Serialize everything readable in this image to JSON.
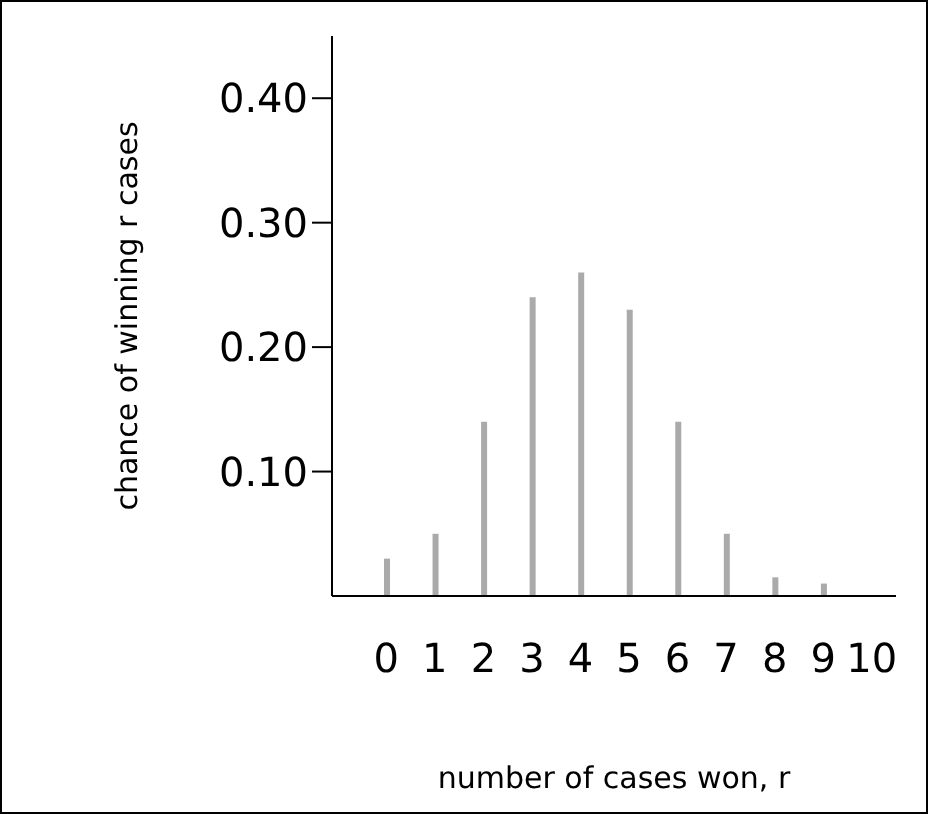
{
  "chart_data": {
    "type": "bar",
    "xlabel": "number of cases won, r",
    "ylabel": "chance of winning r cases",
    "categories": [
      "0",
      "1",
      "2",
      "3",
      "4",
      "5",
      "6",
      "7",
      "8",
      "9",
      "10"
    ],
    "values": [
      0.03,
      0.05,
      0.14,
      0.24,
      0.26,
      0.23,
      0.14,
      0.05,
      0.015,
      0.01,
      0
    ],
    "color": "#aaaaaa",
    "ylim": [
      0,
      0.45
    ],
    "yticks": [
      {
        "value": 0.1,
        "label": "0.10"
      },
      {
        "value": 0.2,
        "label": "0.20"
      },
      {
        "value": 0.3,
        "label": "0.30"
      },
      {
        "value": 0.4,
        "label": "0.40"
      }
    ],
    "grid": false,
    "legend": false
  }
}
